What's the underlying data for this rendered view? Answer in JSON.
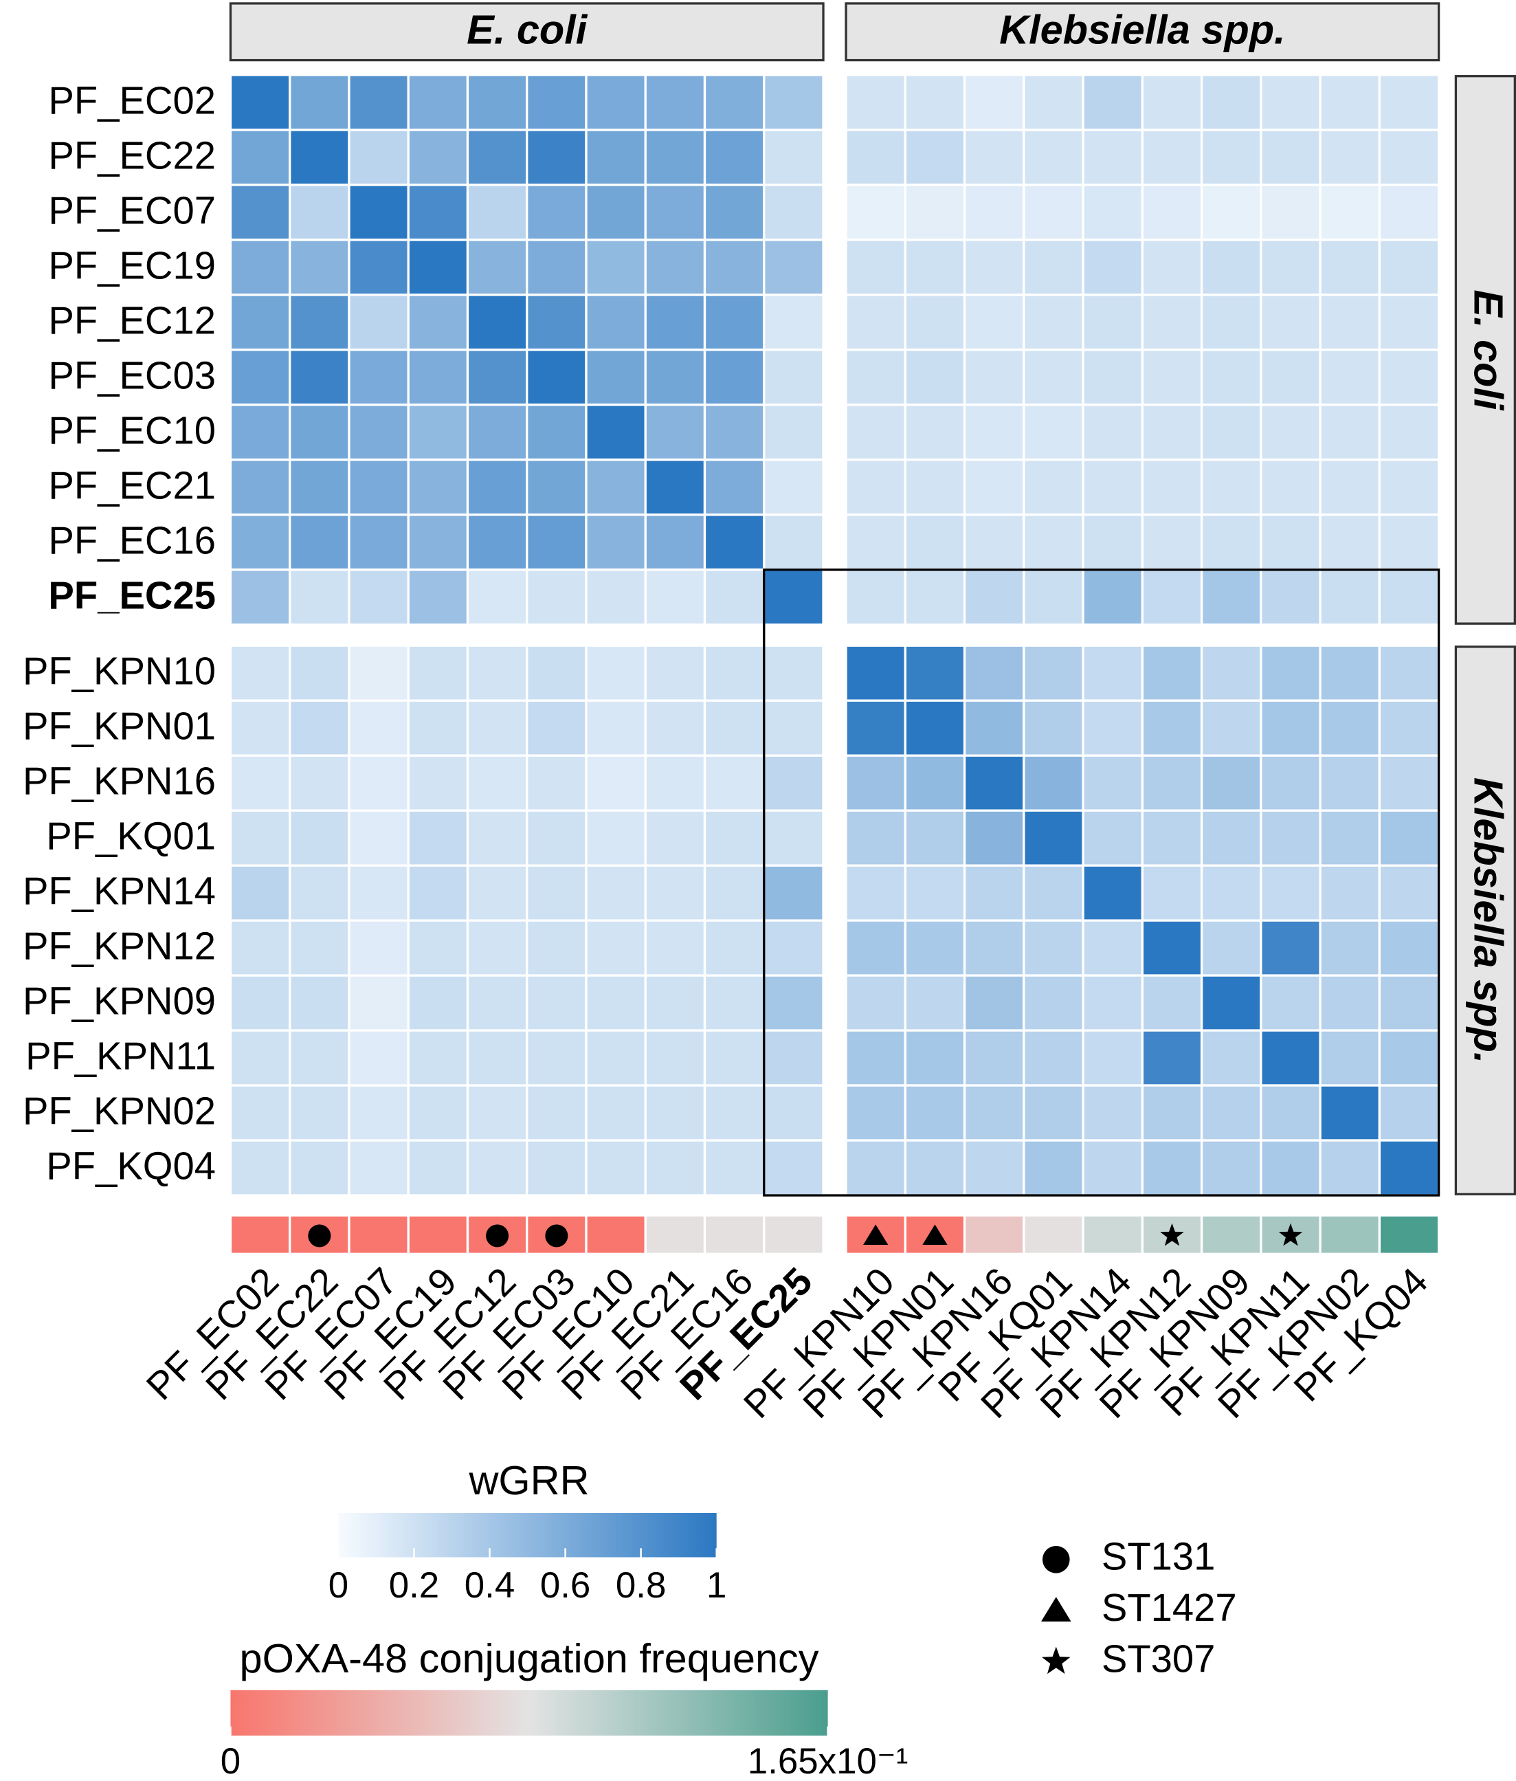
{
  "chart_data": {
    "type": "heatmap",
    "groups": [
      {
        "name": "E. coli",
        "size": 10
      },
      {
        "name": "Klebsiella spp.",
        "size": 10
      }
    ],
    "categories": [
      "PF_EC02",
      "PF_EC22",
      "PF_EC07",
      "PF_EC19",
      "PF_EC12",
      "PF_EC03",
      "PF_EC10",
      "PF_EC21",
      "PF_EC16",
      "PF_EC25",
      "PF_KPN10",
      "PF_KPN01",
      "PF_KPN16",
      "PF_KQ01",
      "PF_KPN14",
      "PF_KPN12",
      "PF_KPN09",
      "PF_KPN11",
      "PF_KPN02",
      "PF_KQ04"
    ],
    "emphasized": "PF_EC25",
    "values": [
      [
        1,
        0.65,
        0.8,
        0.6,
        0.65,
        0.7,
        0.62,
        0.6,
        0.58,
        0.4,
        0.18,
        0.18,
        0.12,
        0.18,
        0.3,
        0.18,
        0.22,
        0.18,
        0.18,
        0.18
      ],
      [
        0.65,
        1,
        0.3,
        0.55,
        0.8,
        0.92,
        0.65,
        0.65,
        0.68,
        0.2,
        0.22,
        0.25,
        0.18,
        0.18,
        0.18,
        0.18,
        0.2,
        0.2,
        0.18,
        0.18
      ],
      [
        0.8,
        0.3,
        1,
        0.85,
        0.3,
        0.62,
        0.65,
        0.6,
        0.65,
        0.22,
        0.08,
        0.1,
        0.12,
        0.12,
        0.15,
        0.12,
        0.08,
        0.1,
        0.08,
        0.12
      ],
      [
        0.6,
        0.55,
        0.85,
        1,
        0.55,
        0.6,
        0.5,
        0.55,
        0.55,
        0.45,
        0.2,
        0.2,
        0.18,
        0.2,
        0.25,
        0.18,
        0.22,
        0.2,
        0.2,
        0.2
      ],
      [
        0.65,
        0.8,
        0.3,
        0.55,
        1,
        0.8,
        0.6,
        0.7,
        0.7,
        0.15,
        0.18,
        0.2,
        0.15,
        0.18,
        0.2,
        0.18,
        0.2,
        0.18,
        0.18,
        0.18
      ],
      [
        0.7,
        0.92,
        0.62,
        0.6,
        0.8,
        1,
        0.65,
        0.65,
        0.7,
        0.2,
        0.2,
        0.22,
        0.18,
        0.18,
        0.2,
        0.18,
        0.2,
        0.2,
        0.18,
        0.18
      ],
      [
        0.62,
        0.65,
        0.6,
        0.5,
        0.6,
        0.65,
        1,
        0.55,
        0.55,
        0.2,
        0.18,
        0.18,
        0.15,
        0.15,
        0.18,
        0.18,
        0.2,
        0.18,
        0.18,
        0.18
      ],
      [
        0.6,
        0.65,
        0.62,
        0.55,
        0.7,
        0.65,
        0.55,
        1,
        0.6,
        0.15,
        0.18,
        0.18,
        0.15,
        0.18,
        0.18,
        0.18,
        0.18,
        0.18,
        0.18,
        0.18
      ],
      [
        0.58,
        0.68,
        0.62,
        0.55,
        0.7,
        0.72,
        0.55,
        0.6,
        1,
        0.2,
        0.18,
        0.2,
        0.18,
        0.18,
        0.2,
        0.18,
        0.2,
        0.2,
        0.18,
        0.18
      ],
      [
        0.45,
        0.2,
        0.25,
        0.45,
        0.15,
        0.18,
        0.18,
        0.15,
        0.2,
        1,
        0.2,
        0.2,
        0.28,
        0.22,
        0.5,
        0.25,
        0.4,
        0.28,
        0.22,
        0.22
      ],
      [
        0.18,
        0.22,
        0.1,
        0.2,
        0.18,
        0.22,
        0.15,
        0.18,
        0.2,
        0.2,
        1,
        0.95,
        0.45,
        0.35,
        0.25,
        0.4,
        0.28,
        0.4,
        0.38,
        0.3
      ],
      [
        0.18,
        0.25,
        0.12,
        0.2,
        0.18,
        0.25,
        0.15,
        0.18,
        0.2,
        0.2,
        0.95,
        1,
        0.5,
        0.35,
        0.25,
        0.38,
        0.28,
        0.4,
        0.38,
        0.3
      ],
      [
        0.15,
        0.18,
        0.12,
        0.18,
        0.15,
        0.18,
        0.12,
        0.15,
        0.15,
        0.28,
        0.45,
        0.5,
        1,
        0.55,
        0.3,
        0.35,
        0.42,
        0.35,
        0.32,
        0.28
      ],
      [
        0.2,
        0.22,
        0.12,
        0.25,
        0.18,
        0.2,
        0.15,
        0.18,
        0.2,
        0.2,
        0.35,
        0.35,
        0.55,
        1,
        0.3,
        0.3,
        0.32,
        0.32,
        0.35,
        0.4
      ],
      [
        0.3,
        0.2,
        0.15,
        0.25,
        0.18,
        0.2,
        0.18,
        0.18,
        0.2,
        0.5,
        0.25,
        0.25,
        0.3,
        0.3,
        1,
        0.25,
        0.25,
        0.25,
        0.28,
        0.28
      ],
      [
        0.2,
        0.2,
        0.12,
        0.2,
        0.18,
        0.2,
        0.18,
        0.18,
        0.2,
        0.25,
        0.4,
        0.38,
        0.35,
        0.3,
        0.25,
        1,
        0.3,
        0.9,
        0.35,
        0.38
      ],
      [
        0.22,
        0.22,
        0.1,
        0.22,
        0.2,
        0.2,
        0.2,
        0.2,
        0.2,
        0.4,
        0.28,
        0.28,
        0.42,
        0.32,
        0.25,
        0.3,
        1,
        0.3,
        0.32,
        0.35
      ],
      [
        0.2,
        0.2,
        0.12,
        0.2,
        0.2,
        0.2,
        0.2,
        0.2,
        0.2,
        0.28,
        0.4,
        0.4,
        0.35,
        0.32,
        0.25,
        0.9,
        0.3,
        1,
        0.35,
        0.38
      ],
      [
        0.2,
        0.2,
        0.15,
        0.2,
        0.18,
        0.2,
        0.2,
        0.2,
        0.2,
        0.22,
        0.38,
        0.38,
        0.35,
        0.35,
        0.28,
        0.35,
        0.32,
        0.35,
        1,
        0.32
      ],
      [
        0.2,
        0.2,
        0.15,
        0.2,
        0.18,
        0.2,
        0.2,
        0.2,
        0.2,
        0.25,
        0.3,
        0.3,
        0.28,
        0.4,
        0.28,
        0.38,
        0.35,
        0.38,
        0.32,
        1
      ]
    ],
    "colorbar": {
      "title": "wGRR",
      "lim": [
        0,
        1
      ],
      "ticks": [
        0,
        0.2,
        0.4,
        0.6,
        0.8,
        1
      ],
      "colors": [
        "#f7fbff",
        "#2b78c2"
      ]
    },
    "conjugation": {
      "title": "pOXA-48 conjugation frequency",
      "lim": [
        0,
        0.165
      ],
      "ticks": [
        0,
        {
          "value": 0.165,
          "label": "1.65x10⁻¹"
        }
      ],
      "colors": [
        "#f8766d",
        "#e3e3e3",
        "#4a9e8e"
      ],
      "values": [
        0,
        0,
        0,
        0,
        0,
        0,
        0,
        0.08,
        0.08,
        0.08,
        0,
        0,
        0.06,
        0.08,
        0.095,
        0.1,
        0.11,
        0.115,
        0.12,
        0.165
      ]
    },
    "sequence_types": [
      null,
      "ST131",
      null,
      null,
      "ST131",
      "ST131",
      null,
      null,
      null,
      null,
      "ST1427",
      "ST1427",
      null,
      null,
      null,
      "ST307",
      null,
      "ST307",
      null,
      null
    ],
    "st_legend": [
      {
        "name": "ST131",
        "shape": "circle"
      },
      {
        "name": "ST1427",
        "shape": "triangle"
      },
      {
        "name": "ST307",
        "shape": "star"
      }
    ]
  }
}
